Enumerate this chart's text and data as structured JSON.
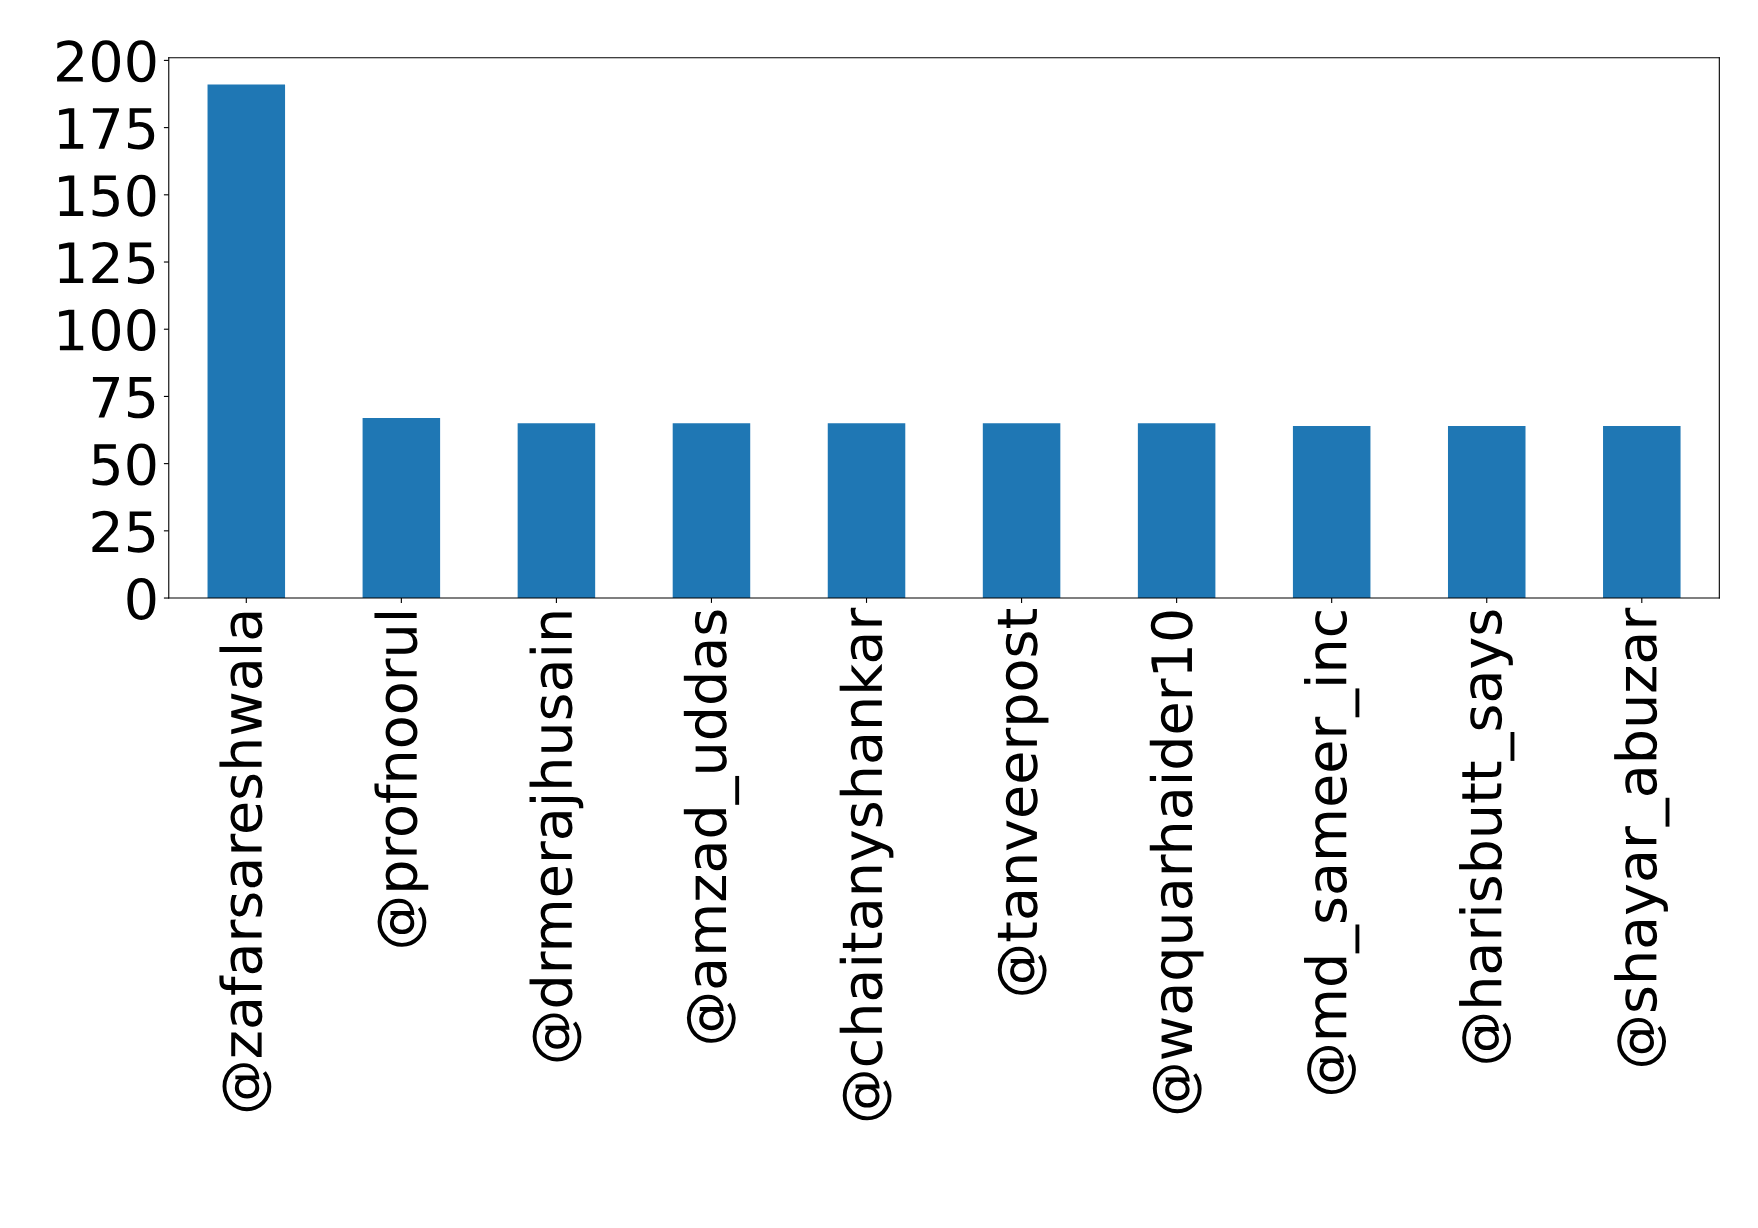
{
  "chart_data": {
    "type": "bar",
    "categories": [
      "@zafarsareshwala",
      "@profnoorul",
      "@drmerajhusain",
      "@amzad_uddas",
      "@chaitanyshankar",
      "@tanveerpost",
      "@waquarhaider10",
      "@md_sameer_inc",
      "@harisbutt_says",
      "@shayar_abuzar"
    ],
    "values": [
      191,
      67,
      65,
      65,
      65,
      65,
      65,
      64,
      64,
      64
    ],
    "color": "#1f77b4",
    "ylim": [
      0,
      201
    ],
    "yticks": [
      0,
      25,
      50,
      75,
      100,
      125,
      150,
      175,
      200
    ],
    "grid": false,
    "legend": false
  }
}
